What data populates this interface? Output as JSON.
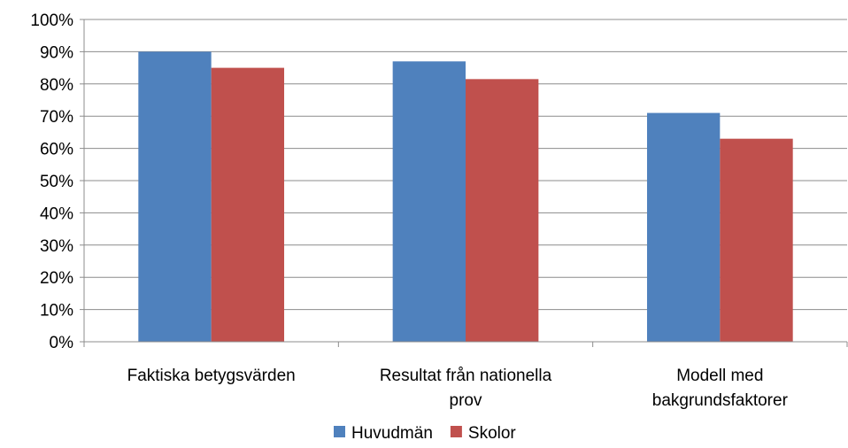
{
  "chart_data": {
    "type": "bar",
    "categories": [
      [
        "Faktiska betygsvärden"
      ],
      [
        "Resultat från nationella",
        "prov"
      ],
      [
        "Modell med",
        "bakgrundsfaktorer"
      ]
    ],
    "series": [
      {
        "name": "Huvudmän",
        "color": "#4f81bd",
        "values": [
          90,
          87,
          71
        ]
      },
      {
        "name": "Skolor",
        "color": "#c0504d",
        "values": [
          85,
          81.5,
          63
        ]
      }
    ],
    "y_ticks": [
      "0%",
      "10%",
      "20%",
      "30%",
      "40%",
      "50%",
      "60%",
      "70%",
      "80%",
      "90%",
      "100%"
    ],
    "ylim": [
      0,
      100
    ],
    "grid": true,
    "legend_position": "bottom"
  }
}
